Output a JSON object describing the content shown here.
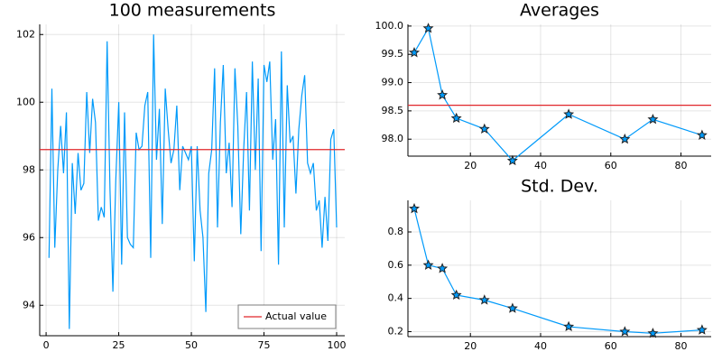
{
  "chart_data": [
    {
      "type": "line",
      "title": "100 measurements",
      "x": [
        1,
        2,
        3,
        4,
        5,
        6,
        7,
        8,
        9,
        10,
        11,
        12,
        13,
        14,
        15,
        16,
        17,
        18,
        19,
        20,
        21,
        22,
        23,
        24,
        25,
        26,
        27,
        28,
        29,
        30,
        31,
        32,
        33,
        34,
        35,
        36,
        37,
        38,
        39,
        40,
        41,
        42,
        43,
        44,
        45,
        46,
        47,
        48,
        49,
        50,
        51,
        52,
        53,
        54,
        55,
        56,
        57,
        58,
        59,
        60,
        61,
        62,
        63,
        64,
        65,
        66,
        67,
        68,
        69,
        70,
        71,
        72,
        73,
        74,
        75,
        76,
        77,
        78,
        79,
        80,
        81,
        82,
        83,
        84,
        85,
        86,
        87,
        88,
        89,
        90,
        91,
        92,
        93,
        94,
        95,
        96,
        97,
        98,
        99,
        100
      ],
      "series": [
        {
          "color": "#009afa",
          "values": [
            95.4,
            100.4,
            95.7,
            98.0,
            99.3,
            97.9,
            99.7,
            93.3,
            98.2,
            96.7,
            98.5,
            97.4,
            97.6,
            100.3,
            98.5,
            100.1,
            99.4,
            96.5,
            96.9,
            96.6,
            101.8,
            97.4,
            94.4,
            97.7,
            100.0,
            95.2,
            99.7,
            96.0,
            95.8,
            95.7,
            99.1,
            98.6,
            98.7,
            99.9,
            100.3,
            95.4,
            102.0,
            98.3,
            99.8,
            96.4,
            100.4,
            99.2,
            98.2,
            98.6,
            99.9,
            97.4,
            98.7,
            98.5,
            98.3,
            98.7,
            95.3,
            98.7,
            96.8,
            96.0,
            93.8,
            97.9,
            98.6,
            101.0,
            96.3,
            99.4,
            101.1,
            97.9,
            98.8,
            96.9,
            101.0,
            99.3,
            96.1,
            98.6,
            100.3,
            96.8,
            101.2,
            98.0,
            100.7,
            95.6,
            101.1,
            100.6,
            101.2,
            98.3,
            99.5,
            95.2,
            101.5,
            96.3,
            100.5,
            98.8,
            99.0,
            97.3,
            99.2,
            100.2,
            100.8,
            98.2,
            97.9,
            98.2,
            96.8,
            97.1,
            95.7,
            97.2,
            95.9,
            98.9,
            99.2,
            96.3
          ]
        }
      ],
      "hline": {
        "name": "Actual value",
        "value": 98.6,
        "color": "#e0262a"
      },
      "xlim": [
        -2.2,
        102.8
      ],
      "xticks": [
        0,
        25,
        50,
        75,
        100
      ],
      "ylim": [
        93.1,
        102.3
      ],
      "yticks": [
        94,
        96,
        98,
        100,
        102
      ],
      "grid": true,
      "legend": "bottom-right"
    },
    {
      "type": "line",
      "title": "Averages",
      "x": [
        4,
        8,
        12,
        16,
        24,
        32,
        48,
        64,
        72,
        86
      ],
      "series": [
        {
          "color": "#009afa",
          "marker": "star",
          "values": [
            99.53,
            99.96,
            98.78,
            98.37,
            98.18,
            97.62,
            98.44,
            98.0,
            98.35,
            98.07
          ]
        }
      ],
      "hline": {
        "value": 98.6,
        "color": "#e0262a"
      },
      "xlim": [
        2.2,
        88.6
      ],
      "xticks": [
        20,
        40,
        60,
        80
      ],
      "ylim": [
        97.7,
        100.03
      ],
      "yticks": [
        {
          "value": 98,
          "label": "98.0"
        },
        98.5,
        {
          "value": 99,
          "label": "99.0"
        },
        99.5,
        {
          "value": 100,
          "label": "100.0"
        }
      ],
      "grid": true
    },
    {
      "type": "line",
      "title": "Std. Dev.",
      "x": [
        4,
        8,
        12,
        16,
        24,
        32,
        48,
        64,
        72,
        86
      ],
      "series": [
        {
          "color": "#009afa",
          "marker": "star",
          "values": [
            0.94,
            0.6,
            0.58,
            0.42,
            0.39,
            0.34,
            0.23,
            0.2,
            0.19,
            0.21
          ]
        }
      ],
      "xlim": [
        2.2,
        88.6
      ],
      "xticks": [
        20,
        40,
        60,
        80
      ],
      "ylim": [
        0.17,
        0.99
      ],
      "yticks": [
        0.2,
        0.4,
        0.6,
        0.8
      ],
      "grid": true
    }
  ]
}
